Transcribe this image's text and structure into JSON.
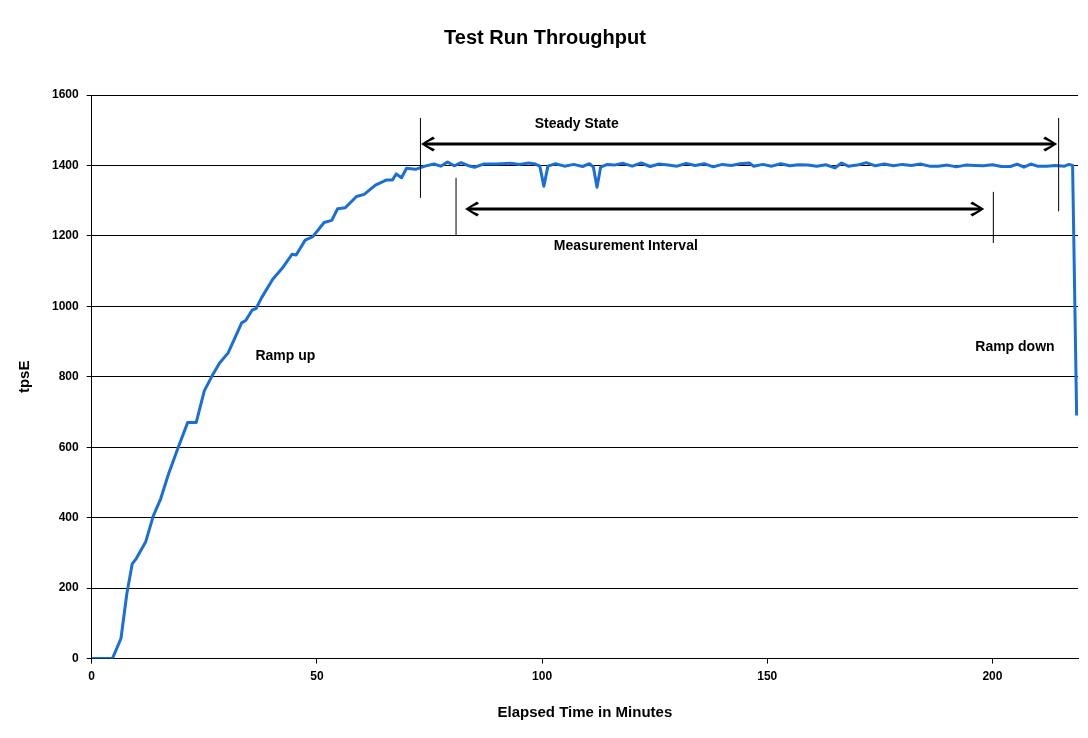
{
  "chart_data": {
    "type": "line",
    "title": "Test Run Throughput",
    "xlabel": "Elapsed Time in Minutes",
    "ylabel": "tpsE",
    "x": [
      0,
      4.6,
      6.5,
      7.8,
      9.0,
      9.9,
      12.0,
      13.7,
      15.3,
      17.0,
      19.1,
      21.3,
      23.2,
      25.0,
      26.7,
      28.4,
      30.3,
      33.3,
      34.2,
      35.6,
      36.5,
      37.7,
      40.2,
      42.3,
      44.5,
      45.4,
      47.4,
      49.1,
      51.6,
      53.3,
      54.6,
      56.3,
      58.8,
      60.5,
      63.0,
      65.5,
      66.8,
      67.6,
      68.8,
      69.9,
      71.9,
      74,
      76,
      77.5,
      79,
      80.5,
      82,
      83.5,
      85,
      87,
      90,
      93,
      95,
      97,
      98.5,
      99.5,
      100.4,
      101.3,
      103,
      105,
      107,
      109,
      110.5,
      111.4,
      112.2,
      113,
      114.5,
      116,
      118,
      120,
      122,
      124,
      126,
      128,
      130,
      132,
      134,
      136,
      138,
      140,
      142,
      144,
      146,
      147,
      149,
      151,
      153,
      155,
      157,
      159,
      161,
      163,
      165,
      166.5,
      168,
      170,
      172,
      174,
      176,
      178,
      180,
      182,
      184,
      186,
      188,
      190,
      192,
      194,
      196,
      198,
      200,
      202,
      204,
      205.5,
      207,
      208.5,
      210,
      212,
      214,
      216,
      217,
      217.8,
      218.7
    ],
    "series": [
      {
        "color": "#1a6fd6",
        "values": [
          0,
          0,
          57,
          184,
          269,
          284,
          332,
          406,
          453,
          522,
          596,
          670,
          670,
          760,
          802,
          839,
          868,
          953,
          960,
          989,
          994,
          1024,
          1077,
          1108,
          1148,
          1146,
          1188,
          1198,
          1238,
          1244,
          1277,
          1280,
          1312,
          1318,
          1344,
          1359,
          1359,
          1376,
          1365,
          1392,
          1389,
          1398,
          1404,
          1398,
          1410,
          1399,
          1408,
          1400,
          1395,
          1404,
          1404,
          1406,
          1403,
          1407,
          1404,
          1398,
          1341,
          1398,
          1405,
          1398,
          1403,
          1397,
          1405,
          1395,
          1338,
          1395,
          1403,
          1401,
          1406,
          1398,
          1407,
          1397,
          1404,
          1401,
          1398,
          1406,
          1400,
          1405,
          1396,
          1403,
          1400,
          1405,
          1407,
          1398,
          1403,
          1398,
          1405,
          1399,
          1402,
          1401,
          1398,
          1402,
          1393,
          1407,
          1398,
          1401,
          1408,
          1399,
          1404,
          1399,
          1403,
          1400,
          1404,
          1398,
          1398,
          1401,
          1396,
          1401,
          1400,
          1399,
          1402,
          1397,
          1397,
          1404,
          1395,
          1404,
          1398,
          1398,
          1400,
          1398,
          1403,
          1400,
          690
        ]
      }
    ],
    "xlim": [
      0,
      219
    ],
    "xticks": [
      0,
      50,
      100,
      150,
      200
    ],
    "ylim": [
      0,
      1600
    ],
    "yticks": [
      0,
      200,
      400,
      600,
      800,
      1000,
      1200,
      1400,
      1600
    ],
    "grid": "y",
    "legend": false,
    "marker": "none",
    "line_style": "solid",
    "ref_lines": [
      {
        "axis": "x",
        "value": 73,
        "color": "#000000"
      },
      {
        "axis": "x",
        "value": 80.9,
        "color": "#000000"
      },
      {
        "axis": "x",
        "value": 200.2,
        "color": "#000000"
      },
      {
        "axis": "x",
        "value": 214.7,
        "color": "#000000"
      }
    ],
    "annotations": [
      "Steady State",
      "Measurement Interval",
      "Ramp up",
      "Ramp down"
    ]
  }
}
